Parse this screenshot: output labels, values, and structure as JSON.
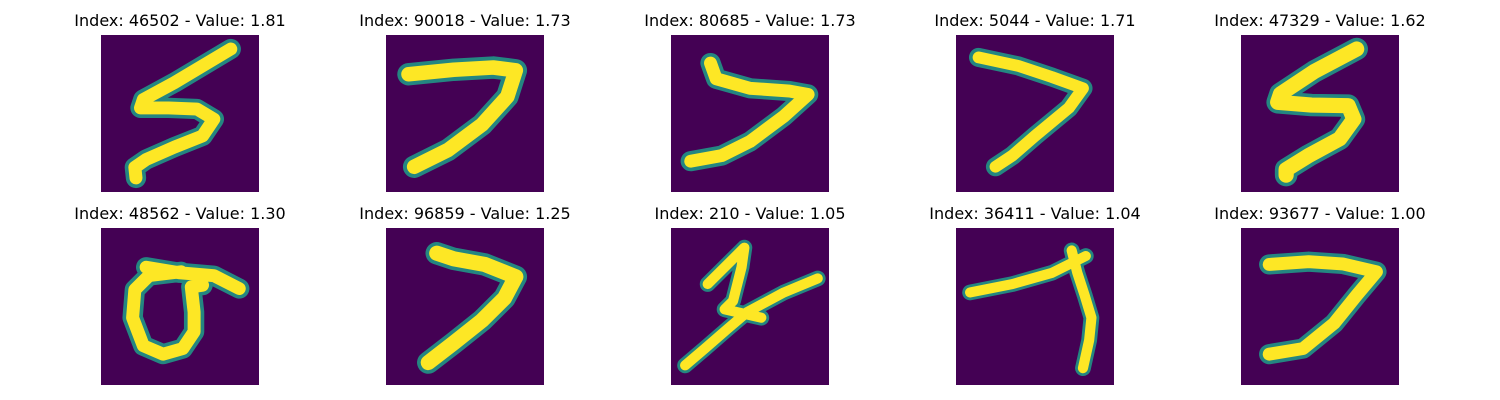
{
  "figure": {
    "colors": {
      "background": "#440154",
      "stroke_core": "#fde725",
      "stroke_edge": "#1f9e89"
    },
    "panels": [
      {
        "title": "Index: 46502 - Value: 1.81",
        "index": 46502,
        "value": 1.81,
        "depicted_digit": "5"
      },
      {
        "title": "Index: 90018 - Value: 1.73",
        "index": 90018,
        "value": 1.73,
        "depicted_digit": "7"
      },
      {
        "title": "Index: 80685 - Value: 1.73",
        "index": 80685,
        "value": 1.73,
        "depicted_digit": "7"
      },
      {
        "title": "Index: 5044 - Value: 1.71",
        "index": 5044,
        "value": 1.71,
        "depicted_digit": "7"
      },
      {
        "title": "Index: 47329 - Value: 1.62",
        "index": 47329,
        "value": 1.62,
        "depicted_digit": "5"
      },
      {
        "title": "Index: 48562 - Value: 1.30",
        "index": 48562,
        "value": 1.3,
        "depicted_digit": "0"
      },
      {
        "title": "Index: 96859 - Value: 1.25",
        "index": 96859,
        "value": 1.25,
        "depicted_digit": "7"
      },
      {
        "title": "Index: 210 - Value: 1.05",
        "index": 210,
        "value": 1.05,
        "depicted_digit": "7"
      },
      {
        "title": "Index: 36411 - Value: 1.04",
        "index": 36411,
        "value": 1.04,
        "depicted_digit": "7"
      },
      {
        "title": "Index: 93677 - Value: 1.00",
        "index": 93677,
        "value": 1.0,
        "depicted_digit": "7"
      }
    ]
  }
}
